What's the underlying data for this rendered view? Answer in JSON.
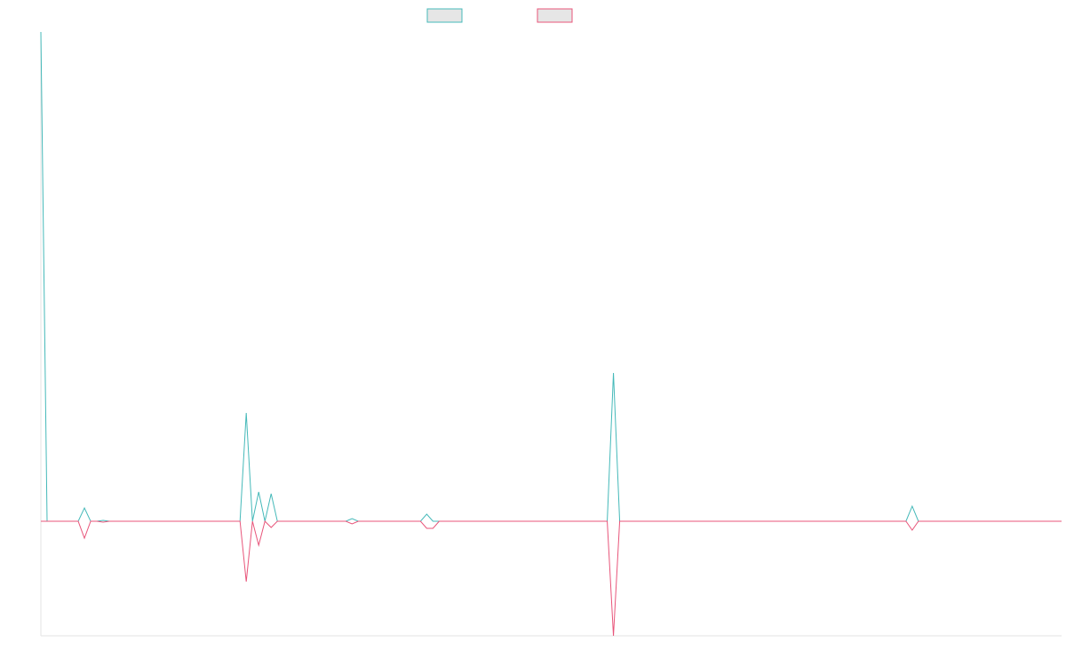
{
  "chart_data": {
    "type": "line",
    "x": [
      0,
      1,
      6,
      7,
      8,
      9,
      10,
      11,
      32,
      33,
      34,
      35,
      36,
      37,
      38,
      49,
      50,
      51,
      61,
      62,
      63,
      64,
      91,
      92,
      93,
      139,
      140,
      141,
      164
    ],
    "xlim": [
      0,
      164
    ],
    "ylim": [
      -12.9,
      55.1
    ],
    "series": [
      {
        "color": "#45b9b9",
        "values": [
          55.1,
          0,
          0,
          1.5,
          0,
          0,
          0.1,
          0,
          0,
          12.2,
          0,
          3.3,
          0,
          3.1,
          0,
          0,
          0.3,
          0,
          0,
          0.8,
          0,
          0,
          0,
          16.7,
          0,
          0,
          1.7,
          0,
          0
        ]
      },
      {
        "color": "#e8557a",
        "values": [
          0,
          0,
          0,
          -1.9,
          0,
          0,
          -0.1,
          0,
          0,
          -6.8,
          0,
          -2.7,
          0,
          -0.7,
          0,
          0,
          -0.3,
          0,
          0,
          -0.8,
          -0.8,
          0,
          0,
          -12.9,
          0,
          0,
          -1.0,
          0,
          0
        ]
      }
    ]
  }
}
